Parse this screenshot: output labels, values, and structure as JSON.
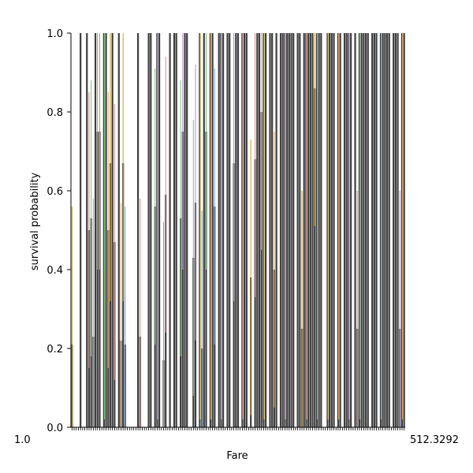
{
  "chart_data": {
    "type": "bar",
    "title": "",
    "xlabel": "Fare",
    "ylabel": "survival probability",
    "ylim": [
      0,
      1.0
    ],
    "yticks": [
      "0.0",
      "0.2",
      "0.4",
      "0.6",
      "0.8",
      "1.0"
    ],
    "xtick_label_left": "1.0",
    "xtick_label_right": "512.3292",
    "grid": false,
    "legend": "none",
    "bar_color": "#3f3f3f",
    "errorbar_colors": [
      "#c9a227",
      "#6fa7cf",
      "#d98b8b",
      "#7bbf7b",
      "#b28fce",
      "#e2a86a"
    ],
    "values": [
      0.21,
      0,
      0,
      0,
      1,
      0,
      0,
      1,
      0.5,
      0.53,
      0.23,
      1,
      0.75,
      0.75,
      0,
      1,
      1,
      0.5,
      0.67,
      1,
      0.47,
      0,
      1,
      0.22,
      0.67,
      0.21,
      0,
      0,
      0,
      0,
      0,
      1,
      0.23,
      0,
      0,
      0,
      1,
      1,
      0,
      0.56,
      1,
      1,
      0,
      0.17,
      0.59,
      0,
      1,
      0,
      1,
      1,
      0,
      0.53,
      0.75,
      1,
      1,
      0,
      0,
      0.43,
      0.57,
      0,
      1,
      0.2,
      1,
      0.75,
      0,
      1,
      1,
      0.56,
      0,
      1,
      1,
      1,
      0,
      1,
      1,
      0,
      0.67,
      1,
      1,
      0,
      1,
      1,
      1,
      0,
      0.38,
      0,
      0.68,
      1,
      1,
      0.8,
      1,
      1,
      0,
      1,
      1,
      0.4,
      1,
      0,
      1,
      1,
      1,
      1,
      1,
      1,
      1,
      0,
      1,
      1,
      0.25,
      1,
      1,
      1,
      1,
      1,
      0.86,
      1,
      1,
      1,
      0,
      0,
      1,
      1,
      1,
      1,
      0,
      1,
      1,
      0,
      1,
      1,
      1,
      1,
      0,
      1,
      0.25,
      1,
      1,
      1,
      1,
      1,
      0,
      1,
      1,
      1,
      0,
      1,
      1,
      1,
      1,
      1,
      0,
      1,
      1,
      1,
      0.25,
      1,
      1
    ]
  }
}
